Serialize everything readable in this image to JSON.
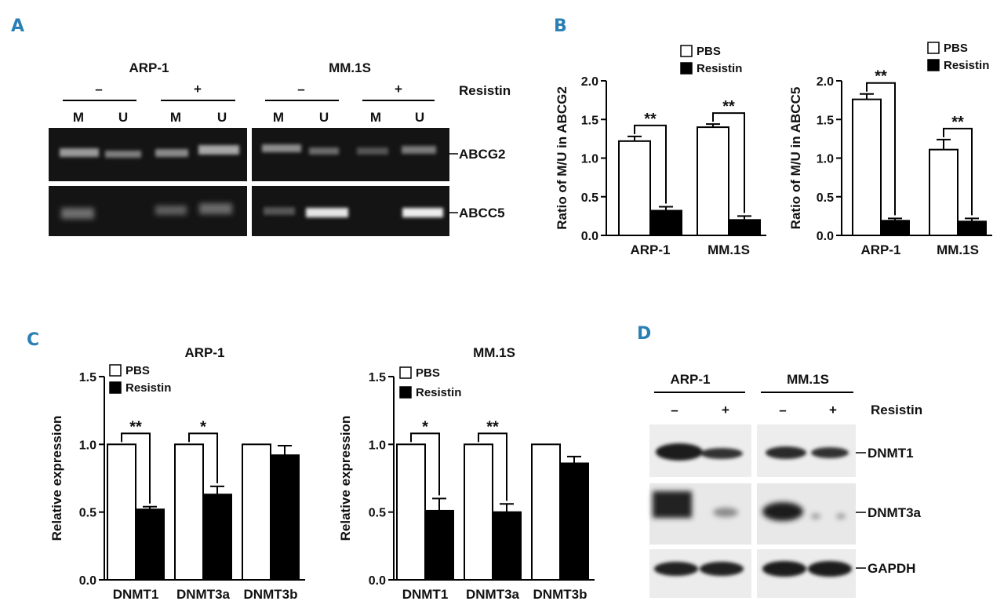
{
  "panels": {
    "A": {
      "letter": "A",
      "cell_lines": [
        "ARP-1",
        "MM.1S"
      ],
      "treatment_title": "Resistin",
      "treatment_signs": [
        "–",
        "+",
        "–",
        "+"
      ],
      "lane_labels": [
        "M",
        "U",
        "M",
        "U",
        "M",
        "U",
        "M",
        "U"
      ],
      "gene_labels": [
        "ABCG2",
        "ABCC5"
      ]
    },
    "B": {
      "letter": "B"
    },
    "C": {
      "letter": "C"
    },
    "D": {
      "letter": "D",
      "cell_lines": [
        "ARP-1",
        "MM.1S"
      ],
      "treatment_title": "Resistin",
      "treatment_signs": [
        "–",
        "+",
        "–",
        "+"
      ],
      "protein_labels": [
        "DNMT1",
        "DNMT3a",
        "GAPDH"
      ]
    }
  },
  "chart_data": [
    {
      "id": "B-left",
      "type": "bar",
      "title": "",
      "xlabel": "",
      "ylabel": "Ratio of M/U in ABCG2",
      "categories": [
        "ARP-1",
        "MM.1S"
      ],
      "ylim": [
        0,
        2.0
      ],
      "yticks": [
        "0.0",
        "0.5",
        "1.0",
        "1.5",
        "2.0"
      ],
      "series": [
        {
          "name": "PBS",
          "values": [
            1.22,
            1.4
          ],
          "errors": [
            0.06,
            0.04
          ],
          "color": "#ffffff"
        },
        {
          "name": "Resistin",
          "values": [
            0.32,
            0.2
          ],
          "errors": [
            0.05,
            0.05
          ],
          "color": "#000000"
        }
      ],
      "significance": [
        "**",
        "**"
      ],
      "legend": "top-right"
    },
    {
      "id": "B-right",
      "type": "bar",
      "title": "",
      "xlabel": "",
      "ylabel": "Ratio of M/U in ABCC5",
      "categories": [
        "ARP-1",
        "MM.1S"
      ],
      "ylim": [
        0,
        2.0
      ],
      "yticks": [
        "0.0",
        "0.5",
        "1.0",
        "1.5",
        "2.0"
      ],
      "series": [
        {
          "name": "PBS",
          "values": [
            1.76,
            1.11
          ],
          "errors": [
            0.07,
            0.13
          ],
          "color": "#ffffff"
        },
        {
          "name": "Resistin",
          "values": [
            0.19,
            0.18
          ],
          "errors": [
            0.03,
            0.04
          ],
          "color": "#000000"
        }
      ],
      "significance": [
        "**",
        "**"
      ],
      "legend": "top-right"
    },
    {
      "id": "C-left",
      "type": "bar",
      "title": "ARP-1",
      "xlabel": "",
      "ylabel": "Relative expression",
      "categories": [
        "DNMT1",
        "DNMT3a",
        "DNMT3b"
      ],
      "ylim": [
        0,
        1.5
      ],
      "yticks": [
        "0.0",
        "0.5",
        "1.0",
        "1.5"
      ],
      "series": [
        {
          "name": "PBS",
          "values": [
            1.0,
            1.0,
            1.0
          ],
          "errors": [
            0,
            0,
            0
          ],
          "color": "#ffffff"
        },
        {
          "name": "Resistin",
          "values": [
            0.52,
            0.63,
            0.92
          ],
          "errors": [
            0.02,
            0.06,
            0.07
          ],
          "color": "#000000"
        }
      ],
      "significance": [
        "**",
        "*",
        ""
      ],
      "legend": "top-left"
    },
    {
      "id": "C-right",
      "type": "bar",
      "title": "MM.1S",
      "xlabel": "",
      "ylabel": "Relative expression",
      "categories": [
        "DNMT1",
        "DNMT3a",
        "DNMT3b"
      ],
      "ylim": [
        0,
        1.5
      ],
      "yticks": [
        "0.0",
        "0.5",
        "1.0",
        "1.5"
      ],
      "series": [
        {
          "name": "PBS",
          "values": [
            1.0,
            1.0,
            1.0
          ],
          "errors": [
            0,
            0,
            0
          ],
          "color": "#ffffff"
        },
        {
          "name": "Resistin",
          "values": [
            0.51,
            0.5,
            0.86
          ],
          "errors": [
            0.09,
            0.06,
            0.05
          ],
          "color": "#000000"
        }
      ],
      "significance": [
        "*",
        "**",
        ""
      ],
      "legend": "top-left"
    }
  ]
}
